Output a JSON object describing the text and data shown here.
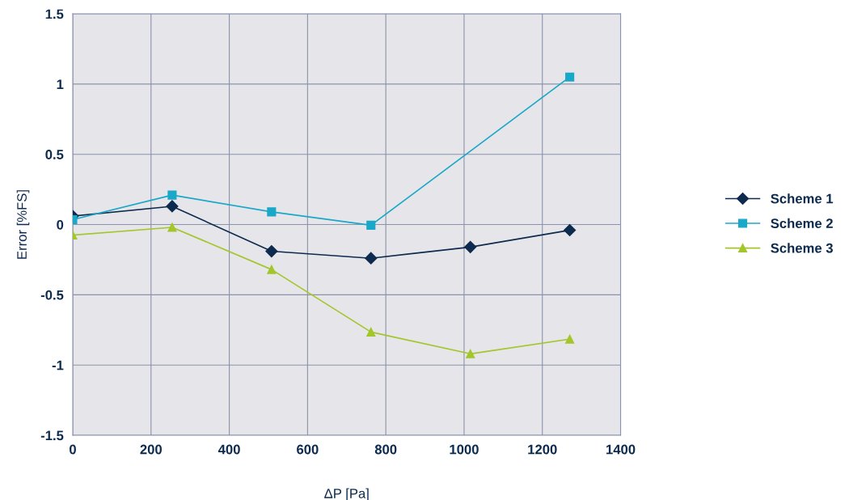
{
  "chart_data": {
    "type": "line",
    "xlabel": "ΔP [Pa]",
    "ylabel": "Error [%FS]",
    "xlim": [
      0,
      1400
    ],
    "xticks": [
      0,
      200,
      400,
      600,
      800,
      1000,
      1200,
      1400
    ],
    "ylim": [
      -1.5,
      1.5
    ],
    "yticks": [
      -1.5,
      -1,
      -0.5,
      0,
      0.5,
      1,
      1.5
    ],
    "grid": true,
    "legend": "right",
    "line_style": "solid",
    "series": [
      {
        "name": "Scheme 1",
        "color": "#0d2b4e",
        "marker": "diamond",
        "x": [
          0,
          254,
          508,
          762,
          1016,
          1270
        ],
        "values": [
          0.06,
          0.13,
          -0.19,
          -0.24,
          -0.16,
          -0.04
        ]
      },
      {
        "name": "Scheme 2",
        "color": "#1aa8c8",
        "marker": "square",
        "x": [
          0,
          254,
          508,
          762,
          1270
        ],
        "values": [
          0.035,
          0.21,
          0.09,
          -0.005,
          1.05
        ]
      },
      {
        "name": "Scheme 3",
        "color": "#a3c62a",
        "marker": "triangle",
        "x": [
          0,
          254,
          508,
          762,
          1016,
          1270
        ],
        "values": [
          -0.075,
          -0.02,
          -0.32,
          -0.765,
          -0.92,
          -0.815
        ]
      }
    ]
  }
}
